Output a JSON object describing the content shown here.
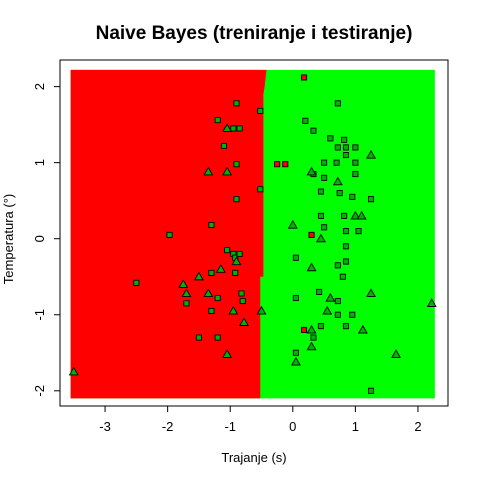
{
  "chart_data": {
    "type": "scatter",
    "title": "Naive Bayes (treniranje i testiranje)",
    "xlabel": "Trajanje (s)",
    "ylabel": "Temperatura (°)",
    "xlim": [
      -3.72,
      2.48
    ],
    "ylim": [
      -2.2,
      2.35
    ],
    "xticks": [
      -3,
      -2,
      -1,
      0,
      1,
      2
    ],
    "yticks": [
      -2,
      -1,
      0,
      1,
      2
    ],
    "grid": false,
    "legend": "none",
    "colors": {
      "region_a": "#ff0000",
      "region_b": "#00ff00",
      "point_a": "#ff0000",
      "point_b": "#00b300",
      "edge": "#000000"
    },
    "decision_boundary": {
      "x_range": [
        -3.55,
        2.27
      ],
      "y_range": [
        -2.1,
        2.22
      ],
      "boundary": [
        {
          "y": -2.1,
          "x": -0.52
        },
        {
          "y": -0.5,
          "x": -0.52
        },
        {
          "y": -0.5,
          "x": -0.47
        },
        {
          "y": 1.9,
          "x": -0.47
        },
        {
          "y": 2.0,
          "x": -0.45
        },
        {
          "y": 2.22,
          "x": -0.42
        }
      ]
    },
    "series": [
      {
        "marker": "square",
        "points": [
          {
            "x": -0.9,
            "y": 1.78,
            "c": "b"
          },
          {
            "x": -1.2,
            "y": 1.56,
            "c": "b"
          },
          {
            "x": -0.95,
            "y": 1.45,
            "c": "b"
          },
          {
            "x": -1.1,
            "y": 1.22,
            "c": "b"
          },
          {
            "x": -0.9,
            "y": 0.98,
            "c": "b"
          },
          {
            "x": -0.85,
            "y": 1.45,
            "c": "b"
          },
          {
            "x": -0.9,
            "y": 0.52,
            "c": "b"
          },
          {
            "x": -1.3,
            "y": 0.18,
            "c": "b"
          },
          {
            "x": -1.05,
            "y": -0.15,
            "c": "b"
          },
          {
            "x": -0.95,
            "y": -0.2,
            "c": "b"
          },
          {
            "x": -0.92,
            "y": -0.25,
            "c": "b"
          },
          {
            "x": -0.85,
            "y": -0.2,
            "c": "b"
          },
          {
            "x": -0.92,
            "y": -0.45,
            "c": "b"
          },
          {
            "x": -1.3,
            "y": -0.45,
            "c": "b"
          },
          {
            "x": -1.7,
            "y": -0.85,
            "c": "b"
          },
          {
            "x": -1.2,
            "y": -0.78,
            "c": "b"
          },
          {
            "x": -0.82,
            "y": -0.72,
            "c": "b"
          },
          {
            "x": -0.8,
            "y": -0.82,
            "c": "b"
          },
          {
            "x": -1.3,
            "y": -0.95,
            "c": "b"
          },
          {
            "x": -1.5,
            "y": -1.3,
            "c": "b"
          },
          {
            "x": -1.2,
            "y": -1.3,
            "c": "b"
          },
          {
            "x": -2.5,
            "y": -0.58,
            "c": "b"
          },
          {
            "x": -1.97,
            "y": 0.05,
            "c": "b"
          },
          {
            "x": -0.52,
            "y": 1.68,
            "c": "b"
          },
          {
            "x": -0.52,
            "y": 0.65,
            "c": "b"
          },
          {
            "x": 0.18,
            "y": 2.12,
            "c": "a"
          },
          {
            "x": -0.25,
            "y": 0.98,
            "c": "a"
          },
          {
            "x": -0.12,
            "y": 0.98,
            "c": "a"
          },
          {
            "x": 0.3,
            "y": 0.05,
            "c": "a"
          },
          {
            "x": 0.18,
            "y": -1.2,
            "c": "a"
          },
          {
            "x": 0.72,
            "y": 1.78,
            "c": "b"
          },
          {
            "x": 0.2,
            "y": 1.55,
            "c": "b"
          },
          {
            "x": 0.33,
            "y": 1.42,
            "c": "b"
          },
          {
            "x": 0.6,
            "y": 1.32,
            "c": "b"
          },
          {
            "x": 0.82,
            "y": 1.3,
            "c": "b"
          },
          {
            "x": 0.72,
            "y": 1.2,
            "c": "b"
          },
          {
            "x": 0.85,
            "y": 1.2,
            "c": "b"
          },
          {
            "x": 1.0,
            "y": 1.2,
            "c": "b"
          },
          {
            "x": 0.85,
            "y": 1.1,
            "c": "b"
          },
          {
            "x": 0.5,
            "y": 1.0,
            "c": "b"
          },
          {
            "x": 0.7,
            "y": 1.0,
            "c": "b"
          },
          {
            "x": 1.0,
            "y": 1.0,
            "c": "b"
          },
          {
            "x": 0.33,
            "y": 0.85,
            "c": "b"
          },
          {
            "x": 0.5,
            "y": 0.8,
            "c": "b"
          },
          {
            "x": 1.0,
            "y": 0.85,
            "c": "b"
          },
          {
            "x": 0.95,
            "y": 0.55,
            "c": "b"
          },
          {
            "x": 0.45,
            "y": 0.62,
            "c": "b"
          },
          {
            "x": 0.75,
            "y": 0.6,
            "c": "b"
          },
          {
            "x": 1.25,
            "y": 0.52,
            "c": "b"
          },
          {
            "x": 0.82,
            "y": 0.3,
            "c": "b"
          },
          {
            "x": 0.45,
            "y": 0.3,
            "c": "b"
          },
          {
            "x": 0.85,
            "y": 0.1,
            "c": "b"
          },
          {
            "x": 0.5,
            "y": 0.15,
            "c": "b"
          },
          {
            "x": 1.05,
            "y": 0.1,
            "c": "b"
          },
          {
            "x": 0.85,
            "y": -0.1,
            "c": "b"
          },
          {
            "x": 0.85,
            "y": -0.3,
            "c": "b"
          },
          {
            "x": 0.72,
            "y": -0.35,
            "c": "b"
          },
          {
            "x": 0.05,
            "y": -0.25,
            "c": "b"
          },
          {
            "x": 0.8,
            "y": -0.5,
            "c": "b"
          },
          {
            "x": 0.42,
            "y": -0.7,
            "c": "b"
          },
          {
            "x": 0.05,
            "y": -0.78,
            "c": "b"
          },
          {
            "x": 0.72,
            "y": -0.82,
            "c": "b"
          },
          {
            "x": 0.72,
            "y": -1.0,
            "c": "b"
          },
          {
            "x": 0.95,
            "y": -1.0,
            "c": "b"
          },
          {
            "x": 0.45,
            "y": -1.15,
            "c": "b"
          },
          {
            "x": 0.85,
            "y": -1.15,
            "c": "b"
          },
          {
            "x": 0.33,
            "y": -1.3,
            "c": "b"
          },
          {
            "x": 0.05,
            "y": -1.5,
            "c": "b"
          },
          {
            "x": 1.25,
            "y": -2.0,
            "c": "b"
          }
        ]
      },
      {
        "marker": "triangle",
        "points": [
          {
            "x": -1.05,
            "y": 1.45,
            "c": "b"
          },
          {
            "x": -1.35,
            "y": 0.88,
            "c": "b"
          },
          {
            "x": -1.05,
            "y": 0.88,
            "c": "b"
          },
          {
            "x": -0.9,
            "y": -0.3,
            "c": "b"
          },
          {
            "x": -1.15,
            "y": -0.4,
            "c": "b"
          },
          {
            "x": -1.5,
            "y": -0.5,
            "c": "b"
          },
          {
            "x": -1.75,
            "y": -0.6,
            "c": "b"
          },
          {
            "x": -1.35,
            "y": -0.72,
            "c": "b"
          },
          {
            "x": -1.7,
            "y": -0.72,
            "c": "b"
          },
          {
            "x": -0.95,
            "y": -0.95,
            "c": "b"
          },
          {
            "x": -0.5,
            "y": -0.95,
            "c": "b"
          },
          {
            "x": -0.78,
            "y": -1.1,
            "c": "b"
          },
          {
            "x": -1.05,
            "y": -1.52,
            "c": "b"
          },
          {
            "x": -3.5,
            "y": -1.75,
            "c": "b"
          },
          {
            "x": 0.3,
            "y": 0.88,
            "c": "b"
          },
          {
            "x": 0.0,
            "y": 0.18,
            "c": "b"
          },
          {
            "x": 0.3,
            "y": -0.38,
            "c": "b"
          },
          {
            "x": 0.05,
            "y": -1.62,
            "c": "b"
          },
          {
            "x": 0.72,
            "y": 0.75,
            "c": "b"
          },
          {
            "x": 1.25,
            "y": 1.1,
            "c": "b"
          },
          {
            "x": 1.0,
            "y": 0.3,
            "c": "b"
          },
          {
            "x": 1.1,
            "y": 0.3,
            "c": "b"
          },
          {
            "x": 0.45,
            "y": 0.0,
            "c": "b"
          },
          {
            "x": 0.6,
            "y": -0.78,
            "c": "b"
          },
          {
            "x": 0.55,
            "y": -0.95,
            "c": "b"
          },
          {
            "x": 1.25,
            "y": -0.72,
            "c": "b"
          },
          {
            "x": 0.3,
            "y": -1.2,
            "c": "b"
          },
          {
            "x": 0.3,
            "y": -1.42,
            "c": "b"
          },
          {
            "x": 1.12,
            "y": -1.2,
            "c": "b"
          },
          {
            "x": 1.65,
            "y": -1.52,
            "c": "b"
          },
          {
            "x": 2.22,
            "y": -0.85,
            "c": "b"
          }
        ]
      }
    ]
  }
}
